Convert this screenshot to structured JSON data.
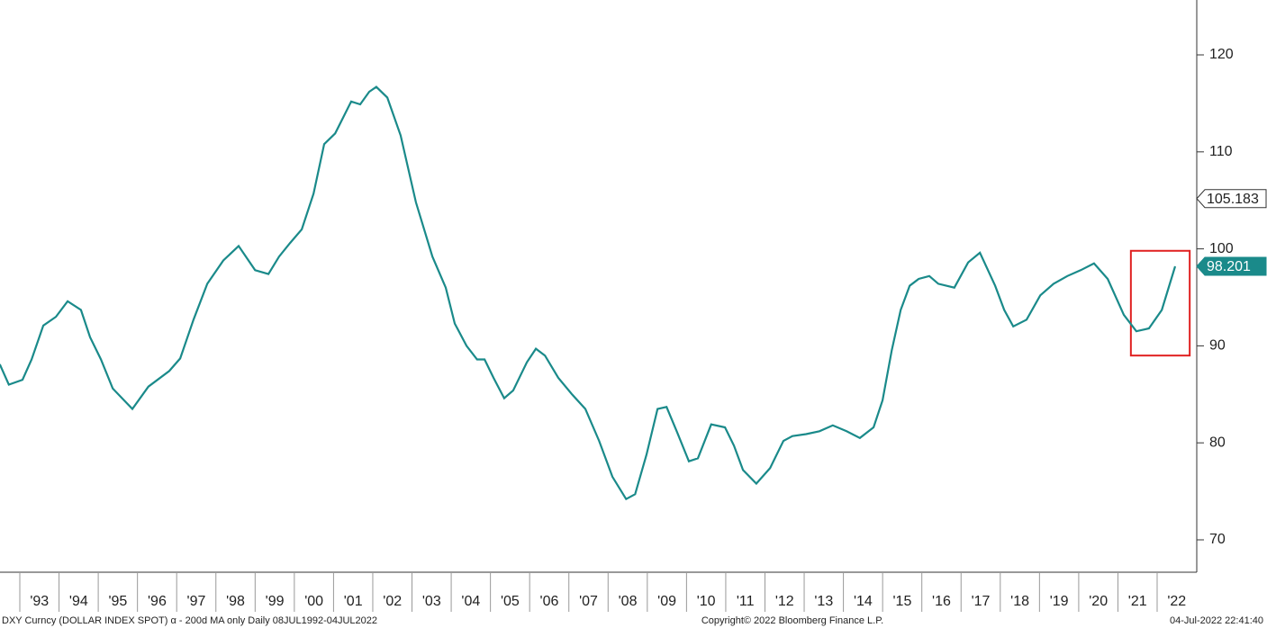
{
  "chart_data": {
    "type": "line",
    "caption": "DXY Curncy (DOLLAR INDEX SPOT) α - 200d MA only  Daily 08JUL1992-04JUL2022",
    "copyright": "Copyright© 2022 Bloomberg Finance L.P.",
    "timestamp": "04-Jul-2022 22:41:40",
    "x": [
      1992.49,
      1992.72,
      1993.07,
      1993.3,
      1993.6,
      1993.92,
      1994.22,
      1994.56,
      1994.79,
      1995.07,
      1995.37,
      1995.87,
      1996.28,
      1996.81,
      1997.09,
      1997.43,
      1997.78,
      1998.19,
      1998.58,
      1999.0,
      1999.34,
      1999.61,
      1999.89,
      2000.19,
      2000.49,
      2000.76,
      2001.04,
      2001.45,
      2001.68,
      2001.91,
      2002.09,
      2002.37,
      2002.71,
      2003.1,
      2003.52,
      2003.86,
      2004.09,
      2004.39,
      2004.66,
      2004.85,
      2005.08,
      2005.35,
      2005.58,
      2005.93,
      2006.16,
      2006.39,
      2006.73,
      2007.08,
      2007.42,
      2007.77,
      2008.11,
      2008.46,
      2008.69,
      2008.98,
      2009.26,
      2009.49,
      2009.76,
      2010.06,
      2010.29,
      2010.63,
      2010.98,
      2011.21,
      2011.44,
      2011.78,
      2012.13,
      2012.47,
      2012.7,
      2013.05,
      2013.39,
      2013.73,
      2014.08,
      2014.42,
      2014.77,
      2015.0,
      2015.23,
      2015.46,
      2015.69,
      2015.92,
      2016.19,
      2016.42,
      2016.83,
      2017.18,
      2017.48,
      2017.87,
      2018.1,
      2018.33,
      2018.67,
      2019.02,
      2019.36,
      2019.71,
      2020.05,
      2020.39,
      2020.74,
      2021.15,
      2021.47,
      2021.79,
      2022.12,
      2022.46
    ],
    "series": [
      {
        "name": "DXY 200d MA",
        "color": "#1a8a8a",
        "values": [
          88.1,
          86.0,
          86.5,
          88.6,
          92.1,
          93.0,
          94.6,
          93.7,
          90.9,
          88.6,
          85.6,
          83.5,
          85.8,
          87.4,
          88.7,
          92.7,
          96.4,
          98.8,
          100.3,
          97.8,
          97.4,
          99.2,
          100.6,
          102.0,
          105.7,
          110.8,
          111.9,
          115.2,
          114.9,
          116.2,
          116.7,
          115.6,
          111.7,
          104.8,
          99.2,
          96.0,
          92.3,
          90.0,
          88.6,
          88.6,
          86.7,
          84.6,
          85.4,
          88.3,
          89.7,
          89.0,
          86.7,
          85.0,
          83.5,
          80.2,
          76.5,
          74.2,
          74.7,
          78.8,
          83.5,
          83.7,
          81.1,
          78.1,
          78.4,
          81.9,
          81.6,
          79.7,
          77.2,
          75.8,
          77.4,
          80.2,
          80.7,
          80.9,
          81.2,
          81.8,
          81.2,
          80.5,
          81.6,
          84.4,
          89.5,
          93.7,
          96.2,
          96.9,
          97.2,
          96.4,
          96.0,
          98.6,
          99.6,
          96.2,
          93.7,
          92.0,
          92.7,
          95.2,
          96.4,
          97.2,
          97.8,
          98.5,
          96.9,
          93.2,
          91.5,
          91.8,
          93.7,
          98.201
        ]
      }
    ],
    "last_value": 98.201,
    "last_value_color": "#1a8a8a",
    "spot_value": 105.183,
    "highlight": {
      "x": [
        2021.33,
        2022.83
      ],
      "y": [
        89.0,
        99.8
      ],
      "color": "#e02020"
    },
    "xlim": [
      1992.495,
      2023.01
    ],
    "ylim": [
      66.66,
      125.66
    ],
    "yticks": [
      70,
      80,
      90,
      100,
      110,
      120
    ],
    "xticks": [
      {
        "value": 1993.5,
        "label": "'93"
      },
      {
        "value": 1994.5,
        "label": "'94"
      },
      {
        "value": 1995.5,
        "label": "'95"
      },
      {
        "value": 1996.5,
        "label": "'96"
      },
      {
        "value": 1997.5,
        "label": "'97"
      },
      {
        "value": 1998.5,
        "label": "'98"
      },
      {
        "value": 1999.5,
        "label": "'99"
      },
      {
        "value": 2000.5,
        "label": "'00"
      },
      {
        "value": 2001.5,
        "label": "'01"
      },
      {
        "value": 2002.5,
        "label": "'02"
      },
      {
        "value": 2003.5,
        "label": "'03"
      },
      {
        "value": 2004.5,
        "label": "'04"
      },
      {
        "value": 2005.5,
        "label": "'05"
      },
      {
        "value": 2006.5,
        "label": "'06"
      },
      {
        "value": 2007.5,
        "label": "'07"
      },
      {
        "value": 2008.5,
        "label": "'08"
      },
      {
        "value": 2009.5,
        "label": "'09"
      },
      {
        "value": 2010.5,
        "label": "'10"
      },
      {
        "value": 2011.5,
        "label": "'11"
      },
      {
        "value": 2012.5,
        "label": "'12"
      },
      {
        "value": 2013.5,
        "label": "'13"
      },
      {
        "value": 2014.5,
        "label": "'14"
      },
      {
        "value": 2015.5,
        "label": "'15"
      },
      {
        "value": 2016.5,
        "label": "'16"
      },
      {
        "value": 2017.5,
        "label": "'17"
      },
      {
        "value": 2018.5,
        "label": "'18"
      },
      {
        "value": 2019.5,
        "label": "'19"
      },
      {
        "value": 2020.5,
        "label": "'20"
      },
      {
        "value": 2021.5,
        "label": "'21"
      },
      {
        "value": 2022.5,
        "label": "'22"
      }
    ]
  }
}
